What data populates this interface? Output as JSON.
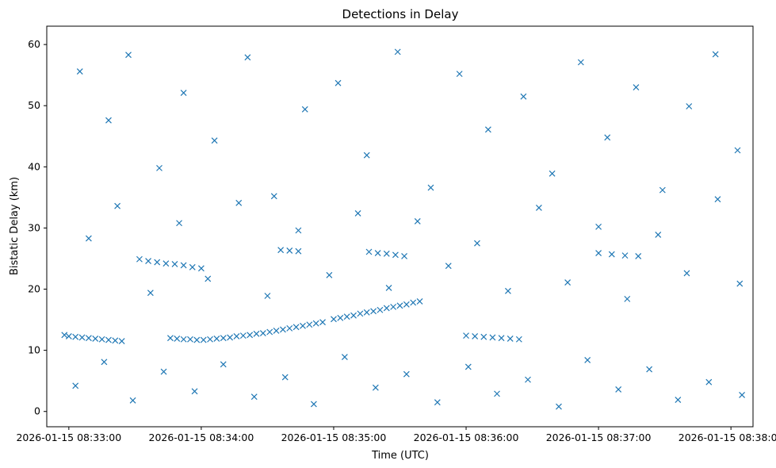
{
  "chart_data": {
    "type": "scatter",
    "title": "Detections in Delay",
    "xlabel": "Time (UTC)",
    "ylabel": "Bistatic Delay (km)",
    "marker": "x",
    "color": "#1f77b4",
    "grid": false,
    "legend": "none",
    "xlim": [
      "2026-01-15 08:32:50",
      "2026-01-15 08:38:10"
    ],
    "ylim": [
      -2.5,
      63
    ],
    "x_ticks": [
      {
        "t": "2026-01-15 08:33:00",
        "label": "2026-01-15 08:33:00"
      },
      {
        "t": "2026-01-15 08:34:00",
        "label": "2026-01-15 08:34:00"
      },
      {
        "t": "2026-01-15 08:35:00",
        "label": "2026-01-15 08:35:00"
      },
      {
        "t": "2026-01-15 08:36:00",
        "label": "2026-01-15 08:36:00"
      },
      {
        "t": "2026-01-15 08:37:00",
        "label": "2026-01-15 08:37:00"
      },
      {
        "t": "2026-01-15 08:38:00",
        "label": "2026-01-15 08:38:00"
      }
    ],
    "y_ticks": [
      0,
      10,
      20,
      30,
      40,
      50,
      60
    ],
    "points": [
      [
        "2026-01-15 08:32:58",
        12.5
      ],
      [
        "2026-01-15 08:33:00",
        12.3
      ],
      [
        "2026-01-15 08:33:03",
        12.2
      ],
      [
        "2026-01-15 08:33:06",
        12.1
      ],
      [
        "2026-01-15 08:33:09",
        12.0
      ],
      [
        "2026-01-15 08:33:12",
        11.9
      ],
      [
        "2026-01-15 08:33:15",
        11.8
      ],
      [
        "2026-01-15 08:33:18",
        11.7
      ],
      [
        "2026-01-15 08:33:21",
        11.6
      ],
      [
        "2026-01-15 08:33:24",
        11.5
      ],
      [
        "2026-01-15 08:33:46",
        12.0
      ],
      [
        "2026-01-15 08:33:49",
        11.9
      ],
      [
        "2026-01-15 08:33:52",
        11.8
      ],
      [
        "2026-01-15 08:33:55",
        11.8
      ],
      [
        "2026-01-15 08:33:58",
        11.7
      ],
      [
        "2026-01-15 08:34:01",
        11.7
      ],
      [
        "2026-01-15 08:34:04",
        11.8
      ],
      [
        "2026-01-15 08:34:07",
        11.9
      ],
      [
        "2026-01-15 08:34:10",
        12.0
      ],
      [
        "2026-01-15 08:34:13",
        12.1
      ],
      [
        "2026-01-15 08:34:16",
        12.3
      ],
      [
        "2026-01-15 08:34:19",
        12.4
      ],
      [
        "2026-01-15 08:34:22",
        12.5
      ],
      [
        "2026-01-15 08:34:25",
        12.7
      ],
      [
        "2026-01-15 08:34:28",
        12.8
      ],
      [
        "2026-01-15 08:34:31",
        13.0
      ],
      [
        "2026-01-15 08:34:34",
        13.2
      ],
      [
        "2026-01-15 08:34:37",
        13.4
      ],
      [
        "2026-01-15 08:34:40",
        13.6
      ],
      [
        "2026-01-15 08:34:43",
        13.8
      ],
      [
        "2026-01-15 08:34:46",
        14.0
      ],
      [
        "2026-01-15 08:34:49",
        14.2
      ],
      [
        "2026-01-15 08:34:52",
        14.4
      ],
      [
        "2026-01-15 08:34:55",
        14.6
      ],
      [
        "2026-01-15 08:35:00",
        15.1
      ],
      [
        "2026-01-15 08:35:03",
        15.3
      ],
      [
        "2026-01-15 08:35:06",
        15.5
      ],
      [
        "2026-01-15 08:35:09",
        15.7
      ],
      [
        "2026-01-15 08:35:12",
        16.0
      ],
      [
        "2026-01-15 08:35:15",
        16.2
      ],
      [
        "2026-01-15 08:35:18",
        16.4
      ],
      [
        "2026-01-15 08:35:21",
        16.6
      ],
      [
        "2026-01-15 08:35:24",
        16.9
      ],
      [
        "2026-01-15 08:35:27",
        17.1
      ],
      [
        "2026-01-15 08:35:30",
        17.3
      ],
      [
        "2026-01-15 08:35:33",
        17.5
      ],
      [
        "2026-01-15 08:35:36",
        17.8
      ],
      [
        "2026-01-15 08:35:39",
        18.0
      ],
      [
        "2026-01-15 08:36:00",
        12.4
      ],
      [
        "2026-01-15 08:36:04",
        12.3
      ],
      [
        "2026-01-15 08:36:08",
        12.2
      ],
      [
        "2026-01-15 08:36:12",
        12.1
      ],
      [
        "2026-01-15 08:36:16",
        12.0
      ],
      [
        "2026-01-15 08:36:20",
        11.9
      ],
      [
        "2026-01-15 08:36:24",
        11.8
      ],
      [
        "2026-01-15 08:33:32",
        24.9
      ],
      [
        "2026-01-15 08:33:36",
        24.6
      ],
      [
        "2026-01-15 08:33:40",
        24.4
      ],
      [
        "2026-01-15 08:33:44",
        24.2
      ],
      [
        "2026-01-15 08:33:48",
        24.1
      ],
      [
        "2026-01-15 08:33:52",
        23.9
      ],
      [
        "2026-01-15 08:33:56",
        23.6
      ],
      [
        "2026-01-15 08:34:00",
        23.4
      ],
      [
        "2026-01-15 08:34:36",
        26.4
      ],
      [
        "2026-01-15 08:34:40",
        26.3
      ],
      [
        "2026-01-15 08:34:44",
        26.2
      ],
      [
        "2026-01-15 08:35:16",
        26.1
      ],
      [
        "2026-01-15 08:35:20",
        25.9
      ],
      [
        "2026-01-15 08:35:24",
        25.8
      ],
      [
        "2026-01-15 08:35:28",
        25.6
      ],
      [
        "2026-01-15 08:35:32",
        25.4
      ],
      [
        "2026-01-15 08:37:00",
        25.9
      ],
      [
        "2026-01-15 08:37:06",
        25.7
      ],
      [
        "2026-01-15 08:37:12",
        25.5
      ],
      [
        "2026-01-15 08:37:18",
        25.4
      ],
      [
        "2026-01-15 08:33:05",
        55.6
      ],
      [
        "2026-01-15 08:33:18",
        47.6
      ],
      [
        "2026-01-15 08:33:27",
        58.3
      ],
      [
        "2026-01-15 08:33:41",
        39.8
      ],
      [
        "2026-01-15 08:33:52",
        52.1
      ],
      [
        "2026-01-15 08:34:06",
        44.3
      ],
      [
        "2026-01-15 08:34:21",
        57.9
      ],
      [
        "2026-01-15 08:34:33",
        35.2
      ],
      [
        "2026-01-15 08:34:47",
        49.4
      ],
      [
        "2026-01-15 08:35:02",
        53.7
      ],
      [
        "2026-01-15 08:35:15",
        41.9
      ],
      [
        "2026-01-15 08:35:29",
        58.8
      ],
      [
        "2026-01-15 08:35:44",
        36.6
      ],
      [
        "2026-01-15 08:35:57",
        55.2
      ],
      [
        "2026-01-15 08:36:10",
        46.1
      ],
      [
        "2026-01-15 08:36:26",
        51.5
      ],
      [
        "2026-01-15 08:36:39",
        38.9
      ],
      [
        "2026-01-15 08:36:52",
        57.1
      ],
      [
        "2026-01-15 08:37:04",
        44.8
      ],
      [
        "2026-01-15 08:37:17",
        53.0
      ],
      [
        "2026-01-15 08:37:29",
        36.2
      ],
      [
        "2026-01-15 08:37:41",
        49.9
      ],
      [
        "2026-01-15 08:37:53",
        58.4
      ],
      [
        "2026-01-15 08:38:03",
        42.7
      ],
      [
        "2026-01-15 08:33:09",
        28.3
      ],
      [
        "2026-01-15 08:33:22",
        33.6
      ],
      [
        "2026-01-15 08:33:37",
        19.4
      ],
      [
        "2026-01-15 08:33:50",
        30.8
      ],
      [
        "2026-01-15 08:34:03",
        21.7
      ],
      [
        "2026-01-15 08:34:17",
        34.1
      ],
      [
        "2026-01-15 08:34:30",
        18.9
      ],
      [
        "2026-01-15 08:34:44",
        29.6
      ],
      [
        "2026-01-15 08:34:58",
        22.3
      ],
      [
        "2026-01-15 08:35:11",
        32.4
      ],
      [
        "2026-01-15 08:35:25",
        20.2
      ],
      [
        "2026-01-15 08:35:38",
        31.1
      ],
      [
        "2026-01-15 08:35:52",
        23.8
      ],
      [
        "2026-01-15 08:36:05",
        27.5
      ],
      [
        "2026-01-15 08:36:19",
        19.7
      ],
      [
        "2026-01-15 08:36:33",
        33.3
      ],
      [
        "2026-01-15 08:36:46",
        21.1
      ],
      [
        "2026-01-15 08:37:00",
        30.2
      ],
      [
        "2026-01-15 08:37:13",
        18.4
      ],
      [
        "2026-01-15 08:37:27",
        28.9
      ],
      [
        "2026-01-15 08:37:40",
        22.6
      ],
      [
        "2026-01-15 08:37:54",
        34.7
      ],
      [
        "2026-01-15 08:38:04",
        20.9
      ],
      [
        "2026-01-15 08:33:03",
        4.2
      ],
      [
        "2026-01-15 08:33:16",
        8.1
      ],
      [
        "2026-01-15 08:33:29",
        1.8
      ],
      [
        "2026-01-15 08:33:43",
        6.5
      ],
      [
        "2026-01-15 08:33:57",
        3.3
      ],
      [
        "2026-01-15 08:34:10",
        7.7
      ],
      [
        "2026-01-15 08:34:24",
        2.4
      ],
      [
        "2026-01-15 08:34:38",
        5.6
      ],
      [
        "2026-01-15 08:34:51",
        1.2
      ],
      [
        "2026-01-15 08:35:05",
        8.9
      ],
      [
        "2026-01-15 08:35:19",
        3.9
      ],
      [
        "2026-01-15 08:35:33",
        6.1
      ],
      [
        "2026-01-15 08:35:47",
        1.5
      ],
      [
        "2026-01-15 08:36:01",
        7.3
      ],
      [
        "2026-01-15 08:36:14",
        2.9
      ],
      [
        "2026-01-15 08:36:28",
        5.2
      ],
      [
        "2026-01-15 08:36:42",
        0.8
      ],
      [
        "2026-01-15 08:36:55",
        8.4
      ],
      [
        "2026-01-15 08:37:09",
        3.6
      ],
      [
        "2026-01-15 08:37:23",
        6.9
      ],
      [
        "2026-01-15 08:37:36",
        1.9
      ],
      [
        "2026-01-15 08:37:50",
        4.8
      ],
      [
        "2026-01-15 08:38:05",
        2.7
      ]
    ]
  }
}
